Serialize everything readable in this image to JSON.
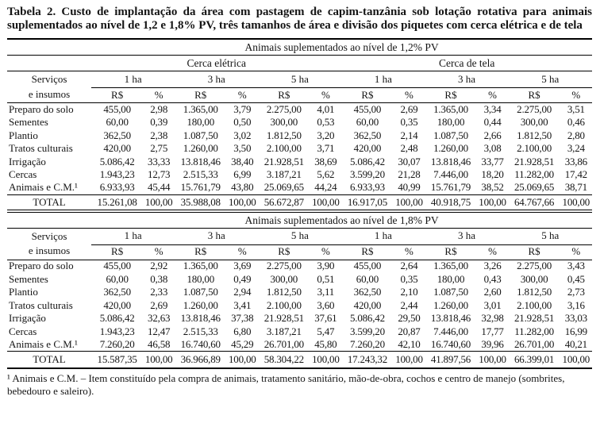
{
  "title": "Tabela 2. Custo de implantação da área com pastagem de capim-tanzânia sob lotação rotativa para animais suplementados ao nível de 1,2 e 1,8% PV, três tamanhos de área e divisão dos piquetes com cerca elétrica e de tela",
  "table": {
    "row_header_lines": [
      "Serviços",
      "e insumos"
    ],
    "fence_labels": [
      "Cerca elétrica",
      "Cerca de tela"
    ],
    "area_labels": [
      "1 ha",
      "3 ha",
      "5 ha",
      "1 ha",
      "3 ha",
      "5 ha"
    ],
    "unit_labels": [
      "R$",
      "%"
    ],
    "sections": [
      {
        "header": "Animais suplementados ao nível de 1,2% PV",
        "rows": [
          {
            "label": "Preparo do solo",
            "values": [
              "455,00",
              "2,98",
              "1.365,00",
              "3,79",
              "2.275,00",
              "4,01",
              "455,00",
              "2,69",
              "1.365,00",
              "3,34",
              "2.275,00",
              "3,51"
            ]
          },
          {
            "label": "Sementes",
            "values": [
              "60,00",
              "0,39",
              "180,00",
              "0,50",
              "300,00",
              "0,53",
              "60,00",
              "0,35",
              "180,00",
              "0,44",
              "300,00",
              "0,46"
            ]
          },
          {
            "label": "Plantio",
            "values": [
              "362,50",
              "2,38",
              "1.087,50",
              "3,02",
              "1.812,50",
              "3,20",
              "362,50",
              "2,14",
              "1.087,50",
              "2,66",
              "1.812,50",
              "2,80"
            ]
          },
          {
            "label": "Tratos culturais",
            "values": [
              "420,00",
              "2,75",
              "1.260,00",
              "3,50",
              "2.100,00",
              "3,71",
              "420,00",
              "2,48",
              "1.260,00",
              "3,08",
              "2.100,00",
              "3,24"
            ]
          },
          {
            "label": "Irrigação",
            "values": [
              "5.086,42",
              "33,33",
              "13.818,46",
              "38,40",
              "21.928,51",
              "38,69",
              "5.086,42",
              "30,07",
              "13.818,46",
              "33,77",
              "21.928,51",
              "33,86"
            ]
          },
          {
            "label": "Cercas",
            "values": [
              "1.943,23",
              "12,73",
              "2.515,33",
              "6,99",
              "3.187,21",
              "5,62",
              "3.599,20",
              "21,28",
              "7.446,00",
              "18,20",
              "11.282,00",
              "17,42"
            ]
          },
          {
            "label": "Animais e C.M.¹",
            "values": [
              "6.933,93",
              "45,44",
              "15.761,79",
              "43,80",
              "25.069,65",
              "44,24",
              "6.933,93",
              "40,99",
              "15.761,79",
              "38,52",
              "25.069,65",
              "38,71"
            ]
          }
        ],
        "total": {
          "label": "TOTAL",
          "values": [
            "15.261,08",
            "100,00",
            "35.988,08",
            "100,00",
            "56.672,87",
            "100,00",
            "16.917,05",
            "100,00",
            "40.918,75",
            "100,00",
            "64.767,66",
            "100,00"
          ]
        }
      },
      {
        "header": "Animais suplementados ao nível de 1,8% PV",
        "rows": [
          {
            "label": "Preparo do solo",
            "values": [
              "455,00",
              "2,92",
              "1.365,00",
              "3,69",
              "2.275,00",
              "3,90",
              "455,00",
              "2,64",
              "1.365,00",
              "3,26",
              "2.275,00",
              "3,43"
            ]
          },
          {
            "label": "Sementes",
            "values": [
              "60,00",
              "0,38",
              "180,00",
              "0,49",
              "300,00",
              "0,51",
              "60,00",
              "0,35",
              "180,00",
              "0,43",
              "300,00",
              "0,45"
            ]
          },
          {
            "label": "Plantio",
            "values": [
              "362,50",
              "2,33",
              "1.087,50",
              "2,94",
              "1.812,50",
              "3,11",
              "362,50",
              "2,10",
              "1.087,50",
              "2,60",
              "1.812,50",
              "2,73"
            ]
          },
          {
            "label": "Tratos culturais",
            "values": [
              "420,00",
              "2,69",
              "1.260,00",
              "3,41",
              "2.100,00",
              "3,60",
              "420,00",
              "2,44",
              "1.260,00",
              "3,01",
              "2.100,00",
              "3,16"
            ]
          },
          {
            "label": "Irrigação",
            "values": [
              "5.086,42",
              "32,63",
              "13.818,46",
              "37,38",
              "21.928,51",
              "37,61",
              "5.086,42",
              "29,50",
              "13.818,46",
              "32,98",
              "21.928,51",
              "33,03"
            ]
          },
          {
            "label": "Cercas",
            "values": [
              "1.943,23",
              "12,47",
              "2.515,33",
              "6,80",
              "3.187,21",
              "5,47",
              "3.599,20",
              "20,87",
              "7.446,00",
              "17,77",
              "11.282,00",
              "16,99"
            ]
          },
          {
            "label": "Animais e C.M.¹",
            "values": [
              "7.260,20",
              "46,58",
              "16.740,60",
              "45,29",
              "26.701,00",
              "45,80",
              "7.260,20",
              "42,10",
              "16.740,60",
              "39,96",
              "26.701,00",
              "40,21"
            ]
          }
        ],
        "total": {
          "label": "TOTAL",
          "values": [
            "15.587,35",
            "100,00",
            "36.966,89",
            "100,00",
            "58.304,22",
            "100,00",
            "17.243,32",
            "100,00",
            "41.897,56",
            "100,00",
            "66.399,01",
            "100,00"
          ]
        }
      }
    ]
  },
  "footnote": "¹ Animais e C.M. – Item constituído pela compra de animais, tratamento sanitário, mão-de-obra, cochos e centro de manejo (sombrites, bebedouro e saleiro)."
}
